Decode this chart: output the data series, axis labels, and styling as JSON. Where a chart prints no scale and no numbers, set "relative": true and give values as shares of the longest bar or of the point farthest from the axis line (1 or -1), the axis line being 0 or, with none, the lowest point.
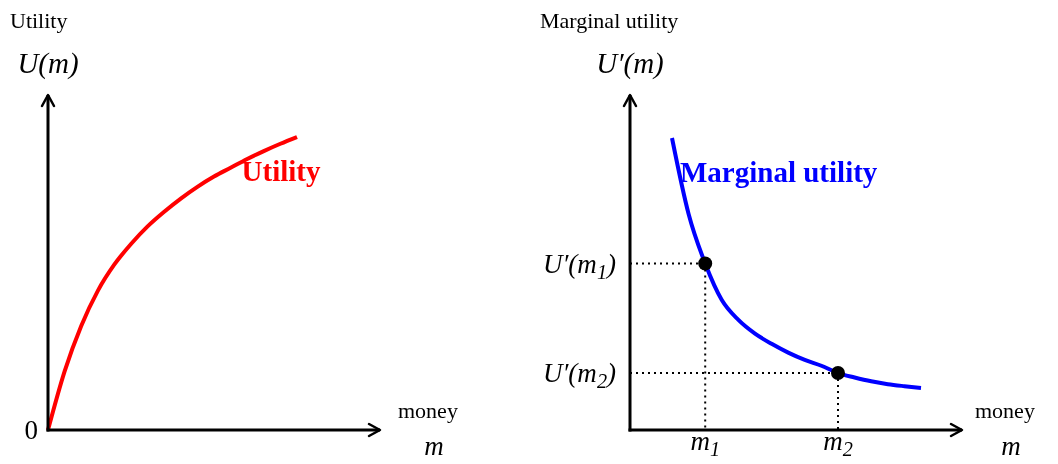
{
  "chart_data": [
    {
      "type": "line",
      "relative": true,
      "xlabel": "money\nm",
      "ylabel": "Utility\nU(m)",
      "categories": [
        null,
        null,
        null,
        null,
        null,
        null,
        null,
        null,
        null,
        null,
        null,
        null,
        null,
        null,
        null,
        null
      ],
      "series": [
        {
          "name": "Utility",
          "color": "#ff0000",
          "values": [
            0,
            0.2,
            0.355,
            0.475,
            0.565,
            0.635,
            0.695,
            0.745,
            0.79,
            0.83,
            0.865,
            0.895,
            0.925,
            0.952,
            0.977,
            1
          ]
        }
      ],
      "annotations": [
        "0"
      ]
    },
    {
      "type": "line",
      "relative": true,
      "xlabel": "money\nm",
      "ylabel": "Marginal utility\nU′(m)",
      "categories": [
        null,
        null,
        "m$_{1}$",
        null,
        null,
        null,
        null,
        null,
        null,
        null,
        "m$_{2}$",
        null,
        null,
        null,
        null,
        null
      ],
      "series": [
        {
          "name": "Marginal utility",
          "color": "#0000ff",
          "values": [
            1,
            0.74,
            0.57,
            0.445,
            0.377,
            0.33,
            0.295,
            0.265,
            0.24,
            0.22,
            0.195,
            0.18,
            0.167,
            0.157,
            0.15,
            0.144
          ]
        },
        {
          "type": "scatter",
          "marker": "circle",
          "color": "#000000",
          "values": [
            null,
            null,
            0.57,
            null,
            null,
            null,
            null,
            null,
            null,
            null,
            0.195,
            null,
            null,
            null,
            null,
            null
          ]
        }
      ],
      "annotations": [
        "U′(m$_{1}$)",
        "U′(m$_{2}$)"
      ]
    }
  ]
}
